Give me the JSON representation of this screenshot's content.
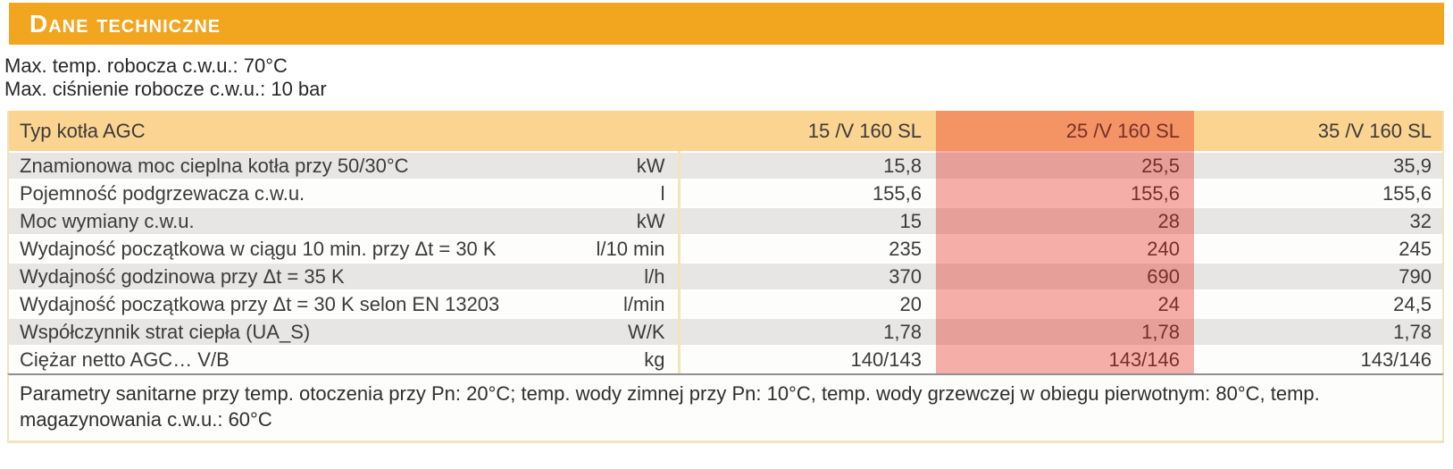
{
  "title": "Dane techniczne",
  "intro": {
    "line1": "Max. temp. robocza c.w.u.: 70°C",
    "line2": "Max. ciśnienie robocze c.w.u.: 10 bar"
  },
  "table": {
    "header_label": "Typ kotła AGC",
    "columns": [
      "15 /V 160 SL",
      "25 /V 160 SL",
      "35 /V 160 SL"
    ],
    "highlighted_column": "25 /V 160 SL",
    "rows": [
      {
        "label": "Znamionowa moc cieplna kotła przy 50/30°C",
        "unit": "kW",
        "values": [
          "15,8",
          "25,5",
          "35,9"
        ]
      },
      {
        "label": "Pojemność podgrzewacza c.w.u.",
        "unit": "l",
        "values": [
          "155,6",
          "155,6",
          "155,6"
        ]
      },
      {
        "label": "Moc wymiany c.w.u.",
        "unit": "kW",
        "values": [
          "15",
          "28",
          "32"
        ]
      },
      {
        "label": "Wydajność początkowa w ciągu 10 min. przy Δt = 30 K",
        "unit": "l/10 min",
        "values": [
          "235",
          "240",
          "245"
        ]
      },
      {
        "label": "Wydajność godzinowa przy Δt = 35 K",
        "unit": "l/h",
        "values": [
          "370",
          "690",
          "790"
        ]
      },
      {
        "label": "Wydajność początkowa przy Δt = 30 K selon EN 13203",
        "unit": "l/min",
        "values": [
          "20",
          "24",
          "24,5"
        ]
      },
      {
        "label": "Współczynnik strat ciepła (UA_S)",
        "unit": "W/K",
        "values": [
          "1,78",
          "1,78",
          "1,78"
        ]
      },
      {
        "label": "Ciężar netto AGC… V/B",
        "unit": "kg",
        "values": [
          "140/143",
          "143/146",
          "143/146"
        ]
      }
    ],
    "footnote": "Parametry sanitarne przy temp. otoczenia przy Pn: 20°C; temp. wody zimnej przy Pn: 10°C, temp. wody grzewczej w obiegu pierwotnym: 80°C, temp. magazynowania c.w.u.: 60°C"
  },
  "colors": {
    "title_bar": "#F2A51F",
    "table_header": "#FBD491",
    "row_gray": "#E7E6E4",
    "row_white": "#FDFDFB",
    "highlight_overlay": "rgba(231,26,17,0.35)",
    "divider_cream": "#F7E4B6",
    "outer_border_cream": "#F0E3BE",
    "footnote_top_border": "#8F8F8F",
    "text": "#3B3B3B"
  }
}
